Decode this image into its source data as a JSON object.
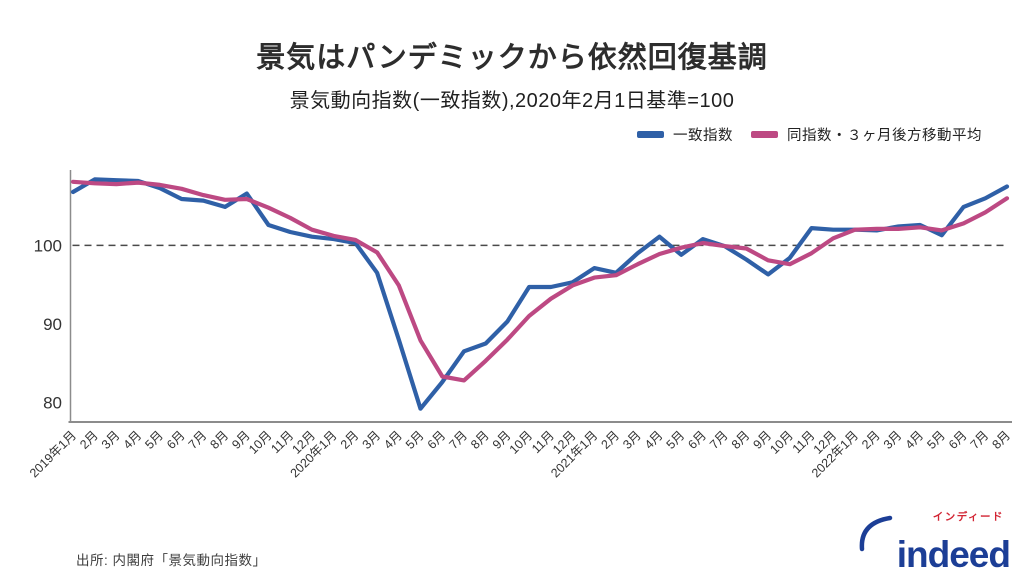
{
  "header": {
    "title": "景気はパンデミックから依然回復基調",
    "subtitle": "景気動向指数(一致指数),2020年2月1日基準=100"
  },
  "colors": {
    "coincident_index": "#2f60a7",
    "moving_average": "#bd4983",
    "axis": "#8c8c8c",
    "baseline_dash": "#4a4a4a",
    "tick_text": "#333333"
  },
  "legend": {
    "items": [
      {
        "label": "一致指数",
        "color": "#2f60a7"
      },
      {
        "label": "同指数・３ヶ月後方移動平均",
        "color": "#bd4983"
      }
    ]
  },
  "footer": {
    "source": "出所: 内閣府「景気動向指数」"
  },
  "logo": {
    "wordmark": "indeed",
    "katakana": "インディード",
    "blue": "#1c3e96",
    "red": "#d22433"
  },
  "chart_data": {
    "type": "line",
    "title": "景気はパンデミックから依然回復基調",
    "subtitle": "景気動向指数(一致指数),2020年2月1日基準=100",
    "xlabel": "",
    "ylabel": "",
    "ylim": [
      77.5,
      109.6
    ],
    "yticks": [
      80,
      90,
      100
    ],
    "baseline": 100,
    "baseline_style": "dashed",
    "legend_position": "top-right",
    "grid": false,
    "categories": [
      "2019年1月",
      "2月",
      "3月",
      "4月",
      "5月",
      "6月",
      "7月",
      "8月",
      "9月",
      "10月",
      "11月",
      "12月",
      "2020年1月",
      "2月",
      "3月",
      "4月",
      "5月",
      "6月",
      "7月",
      "8月",
      "9月",
      "10月",
      "11月",
      "12月",
      "2021年1月",
      "2月",
      "3月",
      "4月",
      "5月",
      "6月",
      "7月",
      "8月",
      "9月",
      "10月",
      "11月",
      "12月",
      "2022年1月",
      "2月",
      "3月",
      "4月",
      "5月",
      "6月",
      "7月",
      "8月"
    ],
    "series": [
      {
        "name": "一致指数",
        "color": "#2f60a7",
        "values": [
          106.8,
          108.4,
          108.3,
          108.2,
          107.3,
          105.9,
          105.7,
          104.9,
          106.6,
          102.6,
          101.7,
          101.1,
          100.8,
          100.3,
          96.5,
          88.0,
          79.2,
          82.6,
          86.5,
          87.5,
          90.3,
          94.7,
          94.7,
          95.3,
          97.1,
          96.5,
          99.0,
          101.1,
          98.8,
          100.8,
          99.9,
          98.2,
          96.3,
          98.4,
          102.2,
          102.0,
          102.0,
          101.9,
          102.4,
          102.6,
          101.3,
          104.9,
          106.0,
          107.5
        ]
      },
      {
        "name": "同指数・３ヶ月後方移動平均",
        "color": "#bd4983",
        "values": [
          108.1,
          107.9,
          107.8,
          108.0,
          107.7,
          107.2,
          106.4,
          105.8,
          105.9,
          104.8,
          103.5,
          102.0,
          101.2,
          100.7,
          99.1,
          94.9,
          87.9,
          83.3,
          82.8,
          85.3,
          88.0,
          91.0,
          93.2,
          94.9,
          95.9,
          96.2,
          97.6,
          98.9,
          99.7,
          100.3,
          99.9,
          99.6,
          98.1,
          97.6,
          99.0,
          100.9,
          102.0,
          102.1,
          102.1,
          102.3,
          101.9,
          102.8,
          104.2,
          106.0
        ]
      }
    ]
  }
}
